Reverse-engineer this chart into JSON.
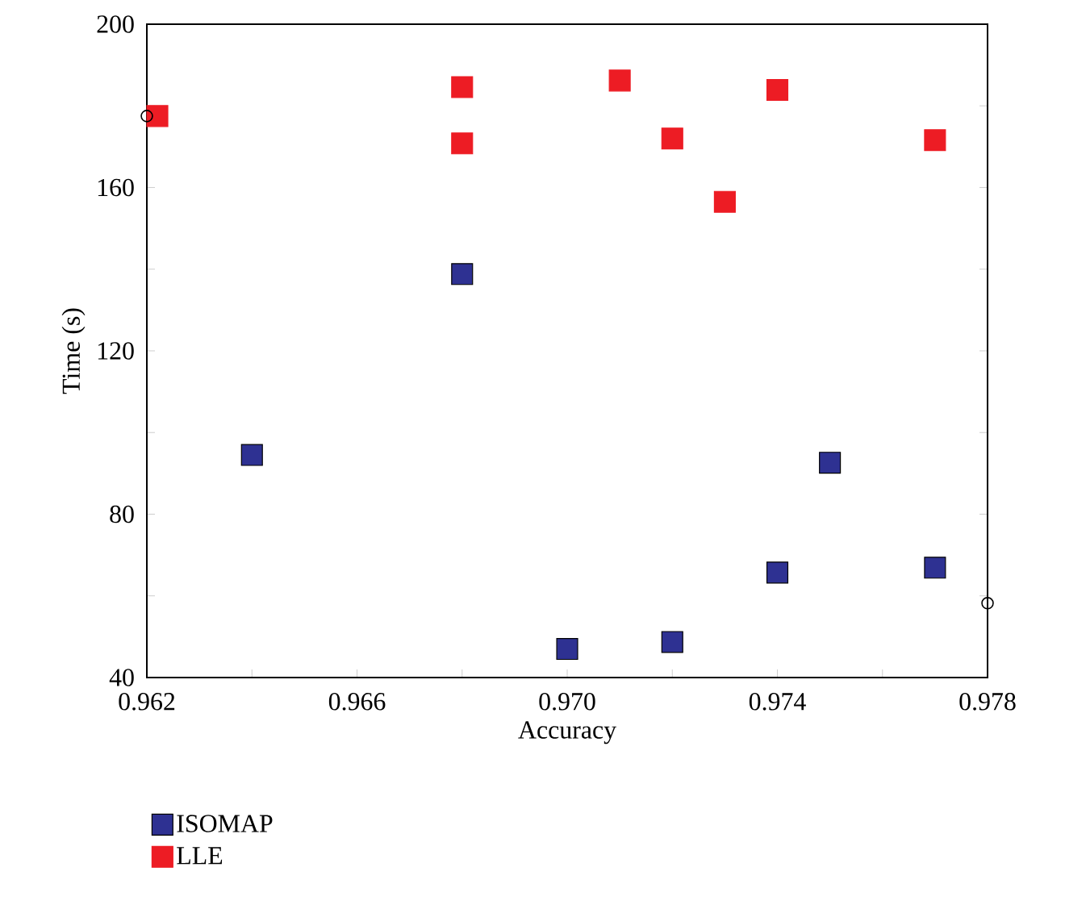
{
  "chart_data": {
    "type": "scatter",
    "xlabel": "Accuracy",
    "ylabel": "Time (s)",
    "xlim": [
      0.962,
      0.978
    ],
    "ylim": [
      40,
      200
    ],
    "xticks": [
      0.962,
      {
        "value": 0.964,
        "label": null
      },
      0.966,
      {
        "value": 0.968,
        "label": null
      },
      {
        "value": 0.97,
        "label": "0.970"
      },
      {
        "value": 0.972,
        "label": null
      },
      0.974,
      {
        "value": 0.976,
        "label": null
      },
      0.978
    ],
    "yticks": [
      40,
      {
        "value": 60,
        "label": null
      },
      80,
      {
        "value": 100,
        "label": null
      },
      120,
      {
        "value": 140,
        "label": null
      },
      160,
      {
        "value": 180,
        "label": null
      },
      200
    ],
    "grid": false,
    "legend": "bottom left",
    "marker": "square",
    "series": [
      {
        "name": "ISOMAP",
        "color": "#2e3192",
        "x": [
          0.964,
          0.968,
          0.97,
          0.972,
          0.974,
          0.975,
          0.977
        ],
        "values": [
          94.5,
          138.8,
          47,
          48.7,
          65.7,
          92.6,
          66.9
        ]
      },
      {
        "name": "LLE",
        "color": "#ed1c24",
        "x": [
          0.9622,
          0.968,
          0.968,
          0.971,
          0.972,
          0.973,
          0.974,
          0.977
        ],
        "values": [
          177.5,
          184.6,
          170.8,
          186.2,
          172,
          156.5,
          183.9,
          171.6
        ]
      },
      {
        "color": "#000000",
        "marker": "circle",
        "x": [
          0.962,
          0.978
        ],
        "values": [
          177.5,
          58.2
        ]
      }
    ]
  }
}
